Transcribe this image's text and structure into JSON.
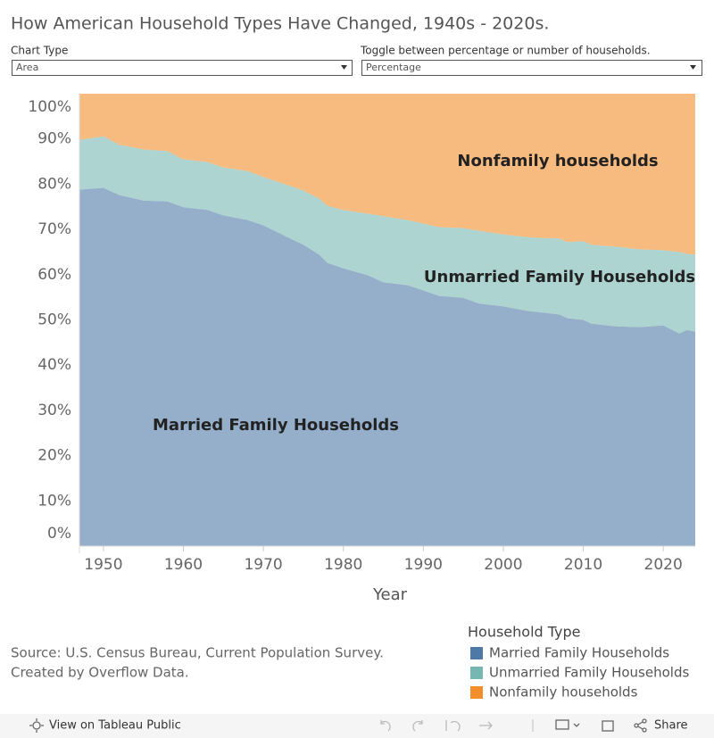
{
  "title": "How American Household Types Have Changed, 1940s - 2020s.",
  "controls": [
    {
      "label": "Chart Type",
      "value": "Area"
    },
    {
      "label": "Toggle between percentage or number of households.",
      "value": "Percentage"
    }
  ],
  "source": [
    "Source:  U.S. Census Bureau, Current Population Survey.",
    "Created by Overflow Data."
  ],
  "toolbar": {
    "view": "View on Tableau Public",
    "share": "Share"
  },
  "chart_data": {
    "type": "stacked-area",
    "x_label": "Year",
    "legend_title": "Household Type",
    "x": [
      1947,
      1950,
      1952,
      1955,
      1958,
      1960,
      1963,
      1965,
      1968,
      1970,
      1973,
      1975,
      1977,
      1978,
      1980,
      1983,
      1985,
      1988,
      1990,
      1992,
      1995,
      1997,
      2000,
      2003,
      2005,
      2007,
      2008,
      2010,
      2011,
      2014,
      2017,
      2020,
      2022,
      2023,
      2024
    ],
    "series": [
      {
        "name": "Married Family Households",
        "color": "#4e79a7",
        "values": [
          78.8,
          79.2,
          77.6,
          76.4,
          76.2,
          74.9,
          74.3,
          73.1,
          72.1,
          70.9,
          68.3,
          66.6,
          64.4,
          62.6,
          61.4,
          59.9,
          58.3,
          57.7,
          56.5,
          55.3,
          54.9,
          53.6,
          53.0,
          52.0,
          51.6,
          51.2,
          50.4,
          50.0,
          49.2,
          48.6,
          48.4,
          48.8,
          47.0,
          47.8,
          47.4
        ]
      },
      {
        "name": "Unmarried Family Households",
        "color": "#76b7b2",
        "values": [
          11.0,
          11.4,
          11.1,
          11.3,
          11.1,
          10.6,
          10.6,
          10.6,
          10.8,
          10.7,
          11.5,
          12.0,
          12.4,
          12.6,
          12.9,
          13.6,
          14.6,
          14.4,
          14.8,
          15.2,
          15.4,
          16.1,
          15.9,
          16.3,
          16.5,
          16.8,
          16.8,
          17.4,
          17.4,
          17.6,
          17.2,
          16.6,
          18.0,
          16.8,
          17.0
        ]
      },
      {
        "name": "Nonfamily households",
        "color": "#f28e2b",
        "values": [
          10.2,
          9.4,
          11.3,
          12.3,
          12.7,
          14.5,
          15.1,
          16.3,
          17.1,
          18.4,
          20.2,
          21.4,
          23.2,
          24.8,
          25.7,
          26.5,
          27.1,
          27.9,
          28.7,
          29.5,
          29.7,
          30.3,
          31.1,
          31.7,
          31.9,
          32.0,
          32.8,
          32.6,
          33.4,
          33.8,
          34.4,
          34.6,
          35.0,
          35.4,
          35.6
        ]
      }
    ],
    "xlim": [
      1947,
      2024
    ],
    "xticks": [
      1950,
      1960,
      1970,
      1980,
      1990,
      2000,
      2010,
      2020
    ],
    "ylim": [
      0,
      100
    ],
    "yticks": [
      {
        "value": 0,
        "label": "0%"
      },
      {
        "value": 10,
        "label": "10%"
      },
      {
        "value": 20,
        "label": "20%"
      },
      {
        "value": 30,
        "label": "30%"
      },
      {
        "value": 40,
        "label": "40%"
      },
      {
        "value": 50,
        "label": "50%"
      },
      {
        "value": 60,
        "label": "60%"
      },
      {
        "value": 70,
        "label": "70%"
      },
      {
        "value": 80,
        "label": "80%"
      },
      {
        "value": 90,
        "label": "90%"
      },
      {
        "value": 100,
        "label": "100%"
      }
    ],
    "grid": false
  }
}
